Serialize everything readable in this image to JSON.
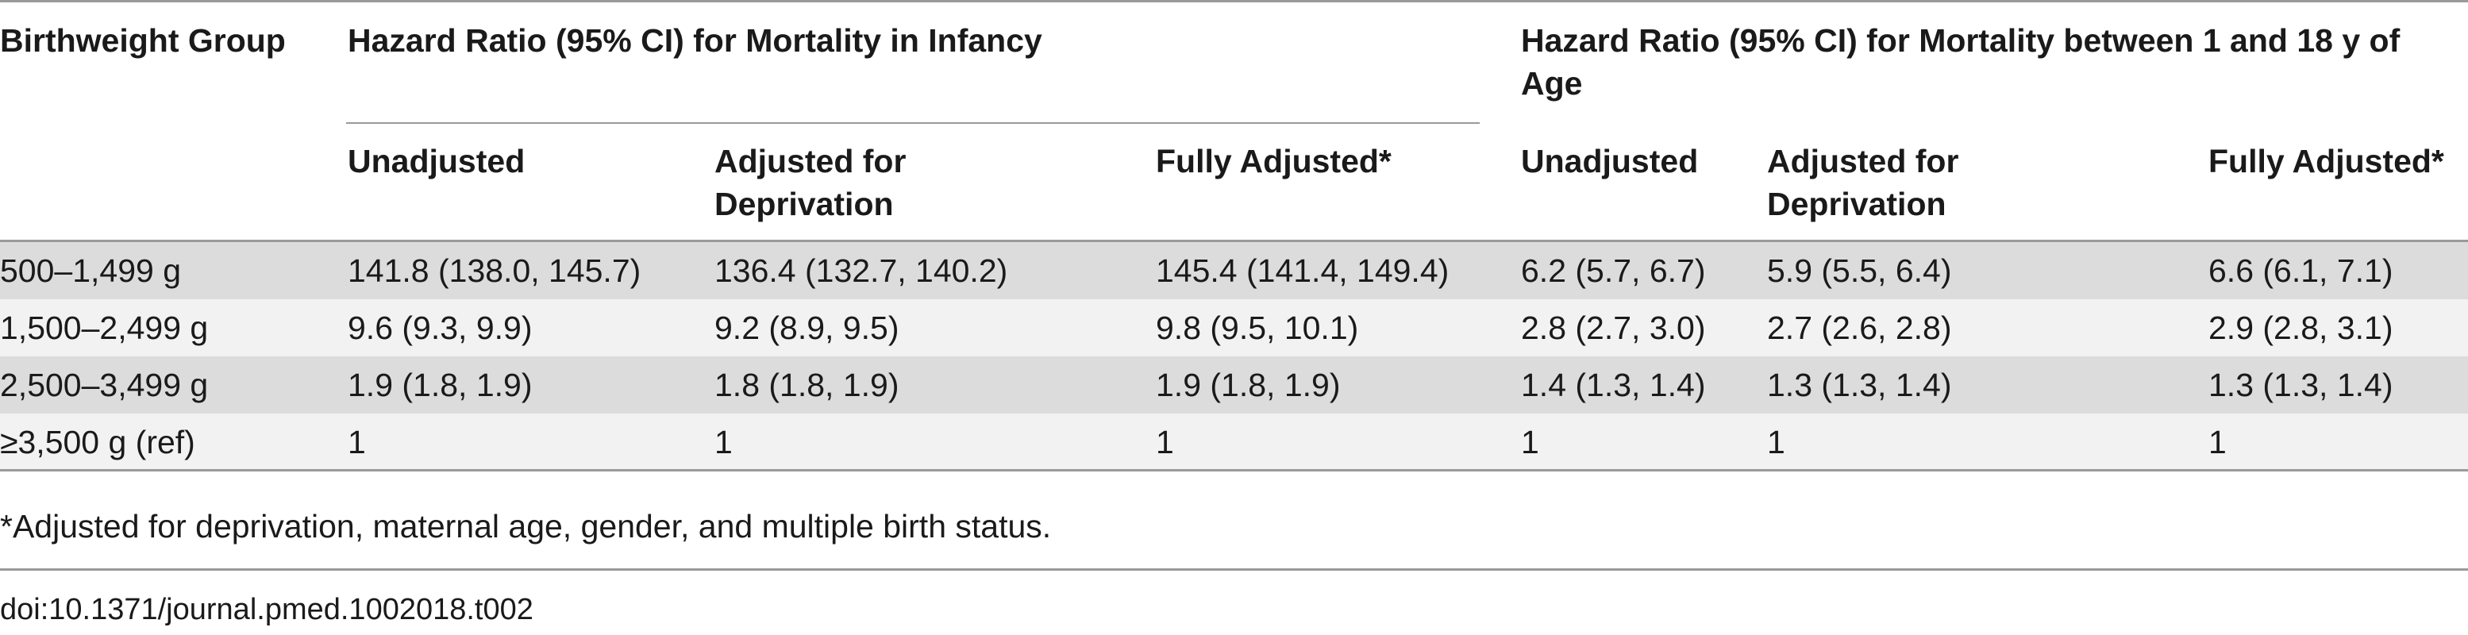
{
  "table": {
    "header": {
      "birthweight_group": "Birthweight Group",
      "group_infancy": "Hazard Ratio (95% CI) for Mortality in Infancy",
      "group_1_18": "Hazard Ratio (95% CI) for Mortality between 1 and 18 y of Age",
      "subheaders": [
        "Unadjusted",
        "Adjusted for Deprivation",
        "Fully Adjusted*",
        "Unadjusted",
        "Adjusted for Deprivation",
        "Fully Adjusted*"
      ]
    },
    "rows": [
      [
        "500–1,499 g",
        "141.8 (138.0, 145.7)",
        "136.4 (132.7, 140.2)",
        "145.4 (141.4, 149.4)",
        "6.2 (5.7, 6.7)",
        "5.9 (5.5, 6.4)",
        "6.6 (6.1, 7.1)"
      ],
      [
        "1,500–2,499 g",
        "9.6 (9.3, 9.9)",
        "9.2 (8.9, 9.5)",
        "9.8 (9.5, 10.1)",
        "2.8 (2.7, 3.0)",
        "2.7 (2.6, 2.8)",
        "2.9 (2.8, 3.1)"
      ],
      [
        "2,500–3,499 g",
        "1.9 (1.8, 1.9)",
        "1.8 (1.8, 1.9)",
        "1.9 (1.8, 1.9)",
        "1.4 (1.3, 1.4)",
        "1.3 (1.3, 1.4)",
        "1.3 (1.3, 1.4)"
      ],
      [
        "≥3,500 g (ref)",
        "1",
        "1",
        "1",
        "1",
        "1",
        "1"
      ]
    ],
    "footnote": "*Adjusted for deprivation, maternal age, gender, and multiple birth status.",
    "doi": "doi:10.1371/journal.pmed.1002018.t002"
  },
  "colors": {
    "row_shade_dark": "#dcdcdd",
    "row_shade_light": "#f2f2f2",
    "rule": "#9a9a9a",
    "text": "#1a1a1a"
  }
}
